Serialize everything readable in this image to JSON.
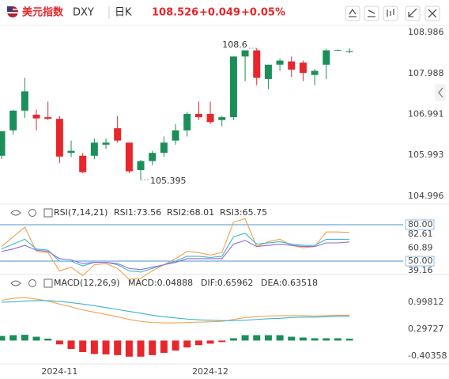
{
  "header": {
    "name": "美元指数",
    "symbol": "DXY",
    "period": "日K",
    "price": "108.526",
    "change": "+0.049",
    "change_pct": "+0.05%"
  },
  "chart_data": [
    {
      "type": "candlestick",
      "categories": [
        null,
        null,
        null,
        null,
        null,
        "2024-11",
        null,
        null,
        null,
        null,
        null,
        null,
        null,
        null,
        null,
        null,
        null,
        null,
        "2024-12",
        null,
        null,
        null,
        null,
        null,
        null,
        null,
        null,
        null,
        null,
        null,
        null
      ],
      "open": [
        105.98,
        106.6,
        107.08,
        106.98,
        106.92,
        106.88,
        106.05,
        105.98,
        105.98,
        106.25,
        106.65,
        106.3,
        105.63,
        105.85,
        106.05,
        106.35,
        106.6,
        107.0,
        107.0,
        106.85,
        106.92,
        108.4,
        108.55,
        107.85,
        108.2,
        108.28,
        108.25,
        107.95,
        108.2,
        108.55,
        108.52
      ],
      "high": [
        106.55,
        107.1,
        107.88,
        107.1,
        107.3,
        106.95,
        106.35,
        106.05,
        106.4,
        106.4,
        106.95,
        106.3,
        105.88,
        106.1,
        106.45,
        106.75,
        107.05,
        107.3,
        107.3,
        106.95,
        108.4,
        108.55,
        108.6,
        108.2,
        108.35,
        108.4,
        108.3,
        108.1,
        108.587,
        108.57,
        108.6
      ],
      "low": [
        105.9,
        106.5,
        106.9,
        106.6,
        106.85,
        105.8,
        105.95,
        105.55,
        105.9,
        106.15,
        106.3,
        105.55,
        105.395,
        105.75,
        105.95,
        106.25,
        106.45,
        106.85,
        106.75,
        106.7,
        106.85,
        107.8,
        107.7,
        107.6,
        108.05,
        107.9,
        107.8,
        107.7,
        107.85,
        108.53,
        108.48
      ],
      "close": [
        106.58,
        107.08,
        107.55,
        106.89,
        106.88,
        105.96,
        106.1,
        105.58,
        106.3,
        106.3,
        106.35,
        105.6,
        105.85,
        106.05,
        106.3,
        106.6,
        107.0,
        106.92,
        106.8,
        106.92,
        108.4,
        108.55,
        107.88,
        108.2,
        108.3,
        108.08,
        108.0,
        108.05,
        108.55,
        108.56,
        108.526
      ],
      "up_color": "#1b8f5a",
      "down_color": "#e8262b",
      "ylim": [
        104.8,
        109.16
      ],
      "yticks": [
        108.986,
        107.988,
        106.991,
        105.993,
        104.996
      ]
    },
    {
      "type": "line",
      "title": "RSI(7,14,21)",
      "series": [
        {
          "name": "RSI1:73.56",
          "color": "#f5a04a",
          "values": [
            62,
            70,
            78,
            58,
            57,
            42,
            45,
            38,
            47,
            48,
            44,
            35,
            36,
            42,
            47,
            52,
            58,
            57,
            55,
            57,
            82,
            85,
            62,
            66,
            68,
            63,
            61,
            62,
            74,
            74,
            73.56
          ]
        },
        {
          "name": "RSI2:68.01",
          "color": "#3bb4d0",
          "values": [
            60,
            64,
            68,
            60,
            59,
            50,
            50,
            46,
            49,
            49,
            47,
            42,
            41,
            44,
            47,
            50,
            54,
            54,
            53,
            54,
            70,
            73,
            64,
            65,
            66,
            64,
            63,
            63,
            68,
            68,
            68.01
          ]
        },
        {
          "name": "RSI3:65.75",
          "color": "#8e6bd6",
          "values": [
            58,
            60,
            63,
            59,
            58,
            52,
            51,
            48,
            49,
            49,
            48,
            44,
            43,
            45,
            47,
            49,
            52,
            52,
            52,
            52,
            64,
            67,
            62,
            63,
            64,
            63,
            62,
            62,
            65,
            65,
            65.75
          ]
        }
      ],
      "hlines": [
        {
          "value": 80,
          "label": "80.00"
        },
        {
          "value": 50,
          "label": "50.00"
        }
      ],
      "hline_color": "#4a90d9",
      "ylim": [
        38.3,
        94.3
      ],
      "yticks": [
        82.61,
        60.89,
        39.16
      ]
    },
    {
      "type": "combo",
      "title": "MACD(12,26,9)",
      "series": [
        {
          "name": "MACD:0.04888",
          "type": "bar",
          "color": "#9b6ad6",
          "up_color": "#1b8f5a",
          "down_color": "#e8262b",
          "values": [
            0.12,
            0.14,
            0.15,
            0.1,
            0.05,
            -0.1,
            -0.22,
            -0.3,
            -0.35,
            -0.36,
            -0.38,
            -0.42,
            -0.42,
            -0.38,
            -0.32,
            -0.26,
            -0.18,
            -0.12,
            -0.08,
            -0.04,
            0.06,
            0.14,
            0.14,
            0.14,
            0.14,
            0.1,
            0.08,
            0.06,
            0.06,
            0.06,
            0.04888
          ]
        },
        {
          "name": "DIF:0.65962",
          "type": "line",
          "color": "#f5a04a",
          "values": [
            1.05,
            1.1,
            1.12,
            1.08,
            1.03,
            0.95,
            0.88,
            0.8,
            0.74,
            0.68,
            0.62,
            0.55,
            0.5,
            0.47,
            0.46,
            0.46,
            0.47,
            0.48,
            0.49,
            0.5,
            0.55,
            0.6,
            0.62,
            0.64,
            0.65,
            0.65,
            0.65,
            0.64,
            0.65,
            0.66,
            0.65962
          ]
        },
        {
          "name": "DEA:0.63518",
          "type": "line",
          "color": "#3bb4d0",
          "values": [
            1.0,
            1.01,
            1.03,
            1.04,
            1.04,
            1.02,
            0.99,
            0.95,
            0.91,
            0.86,
            0.81,
            0.76,
            0.71,
            0.66,
            0.62,
            0.59,
            0.56,
            0.54,
            0.53,
            0.52,
            0.52,
            0.53,
            0.55,
            0.57,
            0.58,
            0.6,
            0.61,
            0.61,
            0.62,
            0.63,
            0.63518
          ]
        }
      ],
      "ylim": [
        -0.61,
        1.658
      ],
      "yticks": [
        0.99812,
        0.29727,
        -0.40358
      ]
    }
  ]
}
